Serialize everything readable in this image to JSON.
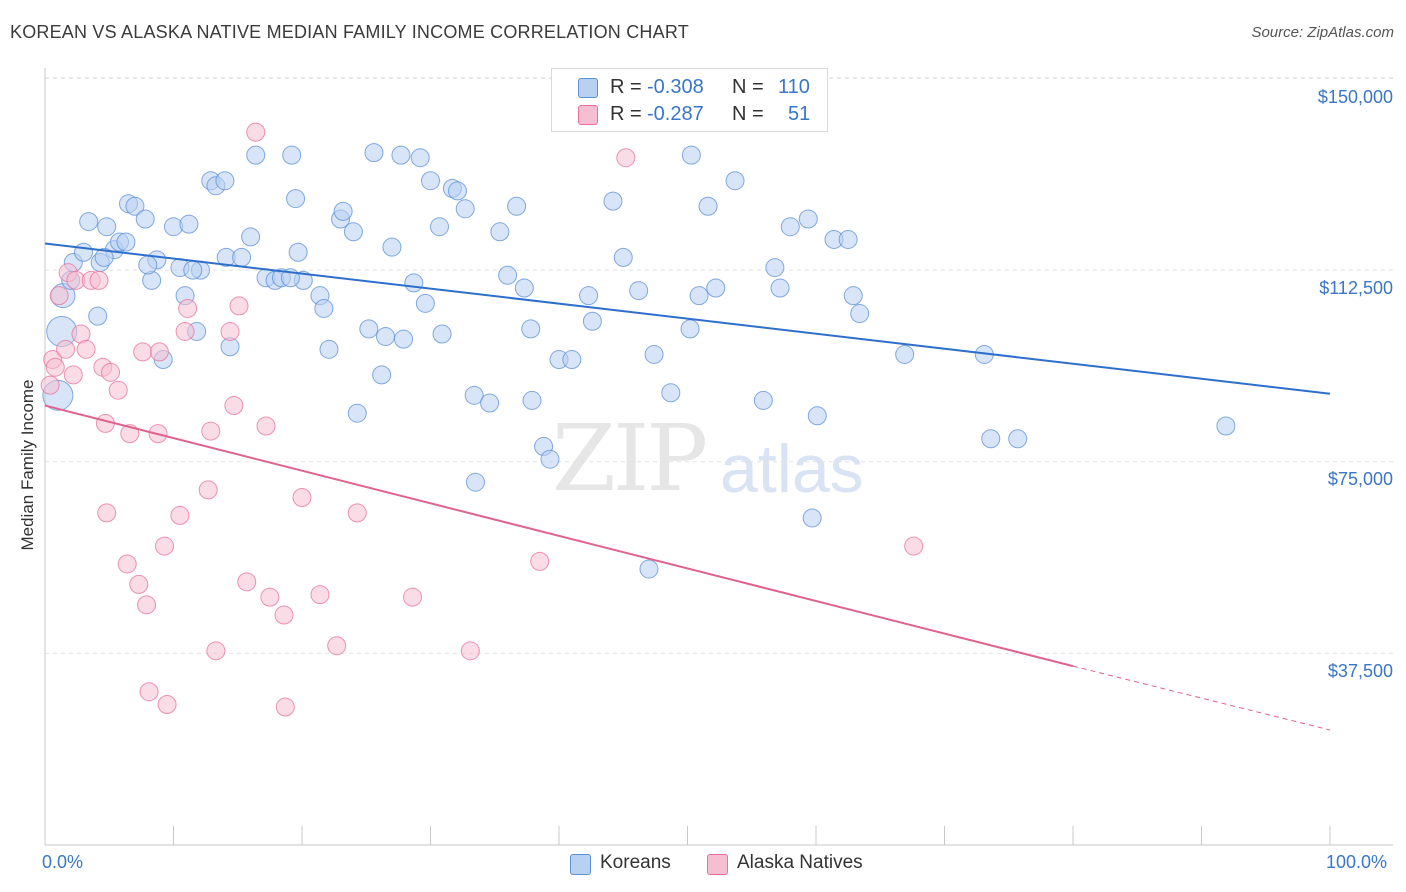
{
  "title": "KOREAN VS ALASKA NATIVE MEDIAN FAMILY INCOME CORRELATION CHART",
  "source": "Source: ZipAtlas.com",
  "watermark": {
    "zip": "ZIP",
    "atlas": "atlas"
  },
  "colors": {
    "korean": "#5b8fd6",
    "korean_fill": "#b8d0f2",
    "alaska": "#e8709a",
    "alaska_fill": "#f5bfd1",
    "accent": "#3a76c8"
  },
  "legend": {
    "korean": {
      "r_label": "R =",
      "r_value": "-0.308",
      "n_label": "N =",
      "n_value": "110"
    },
    "alaska": {
      "r_label": "R =",
      "r_value": "-0.287",
      "n_label": "N =",
      "n_value": "51"
    }
  },
  "chart_data": {
    "type": "scatter",
    "title": "KOREAN VS ALASKA NATIVE MEDIAN FAMILY INCOME CORRELATION CHART",
    "xlabel": "",
    "ylabel": "Median Family Income",
    "xlim": [
      0,
      100
    ],
    "ylim": [
      0,
      160000
    ],
    "x_tick_labels": [
      "0.0%",
      "100.0%"
    ],
    "y_ticks": [
      37500,
      75000,
      112500,
      150000
    ],
    "y_tick_labels": [
      "$37,500",
      "$75,000",
      "$112,500",
      "$150,000"
    ],
    "grid": true,
    "legend_position": "bottom-center",
    "series": [
      {
        "name": "Koreans",
        "trend": {
          "x": [
            0,
            100
          ],
          "y": [
            117700,
            88300
          ]
        },
        "points": [
          [
            1.3,
            100500
          ],
          [
            1.0,
            88000
          ],
          [
            1.4,
            107500
          ],
          [
            2.0,
            110500
          ],
          [
            2.2,
            114000
          ],
          [
            3.0,
            116000
          ],
          [
            3.4,
            122000
          ],
          [
            4.1,
            103500
          ],
          [
            4.3,
            114000
          ],
          [
            4.8,
            121000
          ],
          [
            5.4,
            116500
          ],
          [
            5.8,
            118000
          ],
          [
            6.3,
            118000
          ],
          [
            6.5,
            125500
          ],
          [
            7.0,
            125000
          ],
          [
            7.8,
            122500
          ],
          [
            8.3,
            110500
          ],
          [
            8.7,
            114500
          ],
          [
            9.2,
            95000
          ],
          [
            10.0,
            121000
          ],
          [
            10.5,
            113000
          ],
          [
            10.9,
            107500
          ],
          [
            11.2,
            121500
          ],
          [
            11.8,
            100500
          ],
          [
            12.1,
            112500
          ],
          [
            12.9,
            130000
          ],
          [
            13.3,
            129000
          ],
          [
            14.0,
            130000
          ],
          [
            14.1,
            115000
          ],
          [
            14.4,
            97500
          ],
          [
            15.3,
            115000
          ],
          [
            16.0,
            119000
          ],
          [
            16.4,
            135000
          ],
          [
            17.2,
            111000
          ],
          [
            17.9,
            110500
          ],
          [
            18.4,
            111000
          ],
          [
            19.2,
            135000
          ],
          [
            19.5,
            126500
          ],
          [
            19.7,
            116000
          ],
          [
            20.1,
            110500
          ],
          [
            21.4,
            107500
          ],
          [
            21.7,
            105000
          ],
          [
            22.1,
            97000
          ],
          [
            23.0,
            122500
          ],
          [
            23.2,
            124000
          ],
          [
            24.0,
            120000
          ],
          [
            24.3,
            84500
          ],
          [
            25.2,
            101000
          ],
          [
            25.6,
            135500
          ],
          [
            26.2,
            92000
          ],
          [
            26.5,
            99500
          ],
          [
            27.0,
            117000
          ],
          [
            27.7,
            135000
          ],
          [
            27.9,
            99000
          ],
          [
            28.7,
            110000
          ],
          [
            29.2,
            134500
          ],
          [
            29.6,
            106000
          ],
          [
            30.0,
            130000
          ],
          [
            30.7,
            121000
          ],
          [
            30.9,
            100000
          ],
          [
            31.7,
            128500
          ],
          [
            32.1,
            128000
          ],
          [
            32.7,
            124500
          ],
          [
            33.4,
            88000
          ],
          [
            33.5,
            71000
          ],
          [
            34.6,
            86500
          ],
          [
            35.4,
            120000
          ],
          [
            36.0,
            111500
          ],
          [
            36.7,
            125000
          ],
          [
            37.3,
            109000
          ],
          [
            37.8,
            101000
          ],
          [
            37.9,
            87000
          ],
          [
            38.8,
            78000
          ],
          [
            39.3,
            75500
          ],
          [
            40.0,
            95000
          ],
          [
            41.0,
            95000
          ],
          [
            42.3,
            107500
          ],
          [
            42.6,
            102500
          ],
          [
            44.2,
            126000
          ],
          [
            45.0,
            115000
          ],
          [
            46.2,
            108500
          ],
          [
            47.0,
            54000
          ],
          [
            47.4,
            96000
          ],
          [
            48.7,
            88500
          ],
          [
            50.2,
            101000
          ],
          [
            50.3,
            135000
          ],
          [
            50.9,
            107500
          ],
          [
            51.6,
            125000
          ],
          [
            52.2,
            109000
          ],
          [
            53.7,
            130000
          ],
          [
            55.9,
            87000
          ],
          [
            56.8,
            113000
          ],
          [
            57.2,
            109000
          ],
          [
            58.0,
            121000
          ],
          [
            59.4,
            122500
          ],
          [
            59.7,
            64000
          ],
          [
            60.1,
            84000
          ],
          [
            61.4,
            118500
          ],
          [
            62.5,
            118500
          ],
          [
            62.9,
            107500
          ],
          [
            63.4,
            104000
          ],
          [
            66.9,
            96000
          ],
          [
            73.1,
            96000
          ],
          [
            73.6,
            79500
          ],
          [
            75.7,
            79500
          ],
          [
            91.9,
            82000
          ],
          [
            4.6,
            115000
          ],
          [
            8.0,
            113500
          ],
          [
            11.5,
            112500
          ],
          [
            19.1,
            111000
          ]
        ]
      },
      {
        "name": "Alaska Natives",
        "trend": {
          "x": [
            0,
            80
          ],
          "y": [
            86000,
            35000
          ]
        },
        "trend_dashed": {
          "x": [
            80,
            100
          ],
          "y": [
            35000,
            22500
          ]
        },
        "points": [
          [
            1.1,
            107500
          ],
          [
            1.8,
            112000
          ],
          [
            2.2,
            92000
          ],
          [
            2.4,
            110500
          ],
          [
            2.8,
            100000
          ],
          [
            3.2,
            97000
          ],
          [
            3.6,
            110500
          ],
          [
            4.2,
            110500
          ],
          [
            4.5,
            93500
          ],
          [
            4.7,
            82500
          ],
          [
            4.8,
            65000
          ],
          [
            5.1,
            92500
          ],
          [
            5.7,
            89000
          ],
          [
            6.4,
            55000
          ],
          [
            6.6,
            80500
          ],
          [
            7.3,
            51000
          ],
          [
            7.6,
            96500
          ],
          [
            7.9,
            47000
          ],
          [
            8.1,
            30000
          ],
          [
            8.8,
            80500
          ],
          [
            8.9,
            96500
          ],
          [
            9.3,
            58500
          ],
          [
            9.5,
            27500
          ],
          [
            10.5,
            64500
          ],
          [
            10.9,
            100500
          ],
          [
            11.1,
            105000
          ],
          [
            12.7,
            69500
          ],
          [
            12.9,
            81000
          ],
          [
            13.3,
            38000
          ],
          [
            14.4,
            100500
          ],
          [
            14.7,
            86000
          ],
          [
            15.1,
            105500
          ],
          [
            15.7,
            51500
          ],
          [
            16.4,
            139500
          ],
          [
            17.2,
            82000
          ],
          [
            17.5,
            48500
          ],
          [
            18.6,
            45000
          ],
          [
            18.7,
            27000
          ],
          [
            20.0,
            68000
          ],
          [
            21.4,
            49000
          ],
          [
            22.7,
            39000
          ],
          [
            24.3,
            65000
          ],
          [
            28.6,
            48500
          ],
          [
            33.1,
            38000
          ],
          [
            38.5,
            55500
          ],
          [
            45.2,
            134500
          ],
          [
            67.6,
            58500
          ],
          [
            0.6,
            95000
          ],
          [
            0.8,
            93500
          ],
          [
            1.6,
            97000
          ],
          [
            0.4,
            90000
          ]
        ]
      }
    ]
  }
}
